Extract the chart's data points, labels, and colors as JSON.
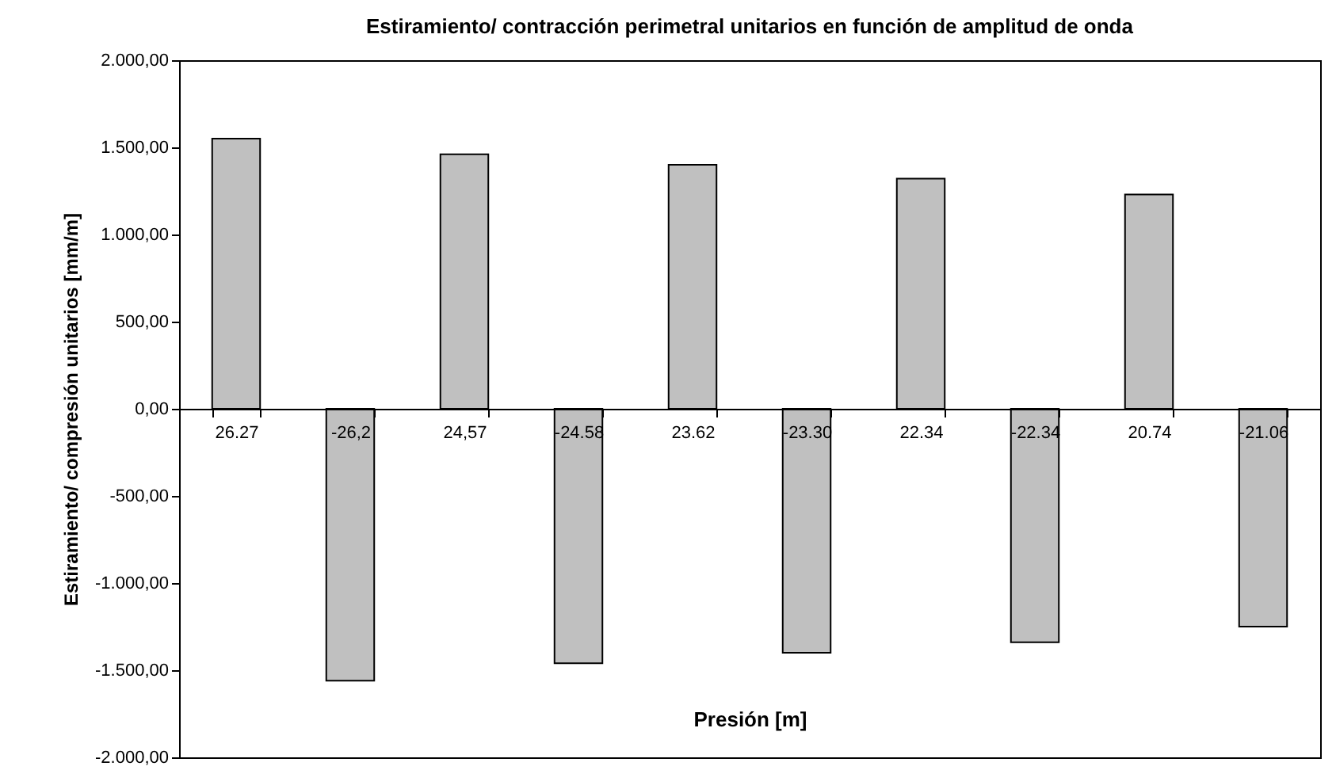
{
  "chart_data": {
    "type": "bar",
    "title": "Estiramiento/ contracción  perimetral  unitarios en función de amplitud de onda",
    "xlabel": "Presión [m]",
    "ylabel": "Estiramiento/ compresión unitarios [mm/m]",
    "categories": [
      "26.27",
      "-26,2",
      "24,57",
      "-24.58",
      "23.62",
      "-23.30",
      "22.34",
      "-22.34",
      "20.74",
      "-21.06"
    ],
    "values": [
      1550,
      -1560,
      1460,
      -1460,
      1400,
      -1400,
      1320,
      -1340,
      1230,
      -1250
    ],
    "color": "#c0c0c0",
    "ylim": [
      -2000,
      2000
    ],
    "yticks": [
      {
        "value": -2000,
        "label": "-2.000,00"
      },
      {
        "value": -1500,
        "label": "-1.500,00"
      },
      {
        "value": -1000,
        "label": "-1.000,00"
      },
      {
        "value": -500,
        "label": "-500,00"
      },
      {
        "value": 0,
        "label": "0,00"
      },
      {
        "value": 500,
        "label": "500,00"
      },
      {
        "value": 1000,
        "label": "1.000,00"
      },
      {
        "value": 1500,
        "label": "1.500,00"
      },
      {
        "value": 2000,
        "label": "2.000,00"
      }
    ],
    "grid": false
  }
}
